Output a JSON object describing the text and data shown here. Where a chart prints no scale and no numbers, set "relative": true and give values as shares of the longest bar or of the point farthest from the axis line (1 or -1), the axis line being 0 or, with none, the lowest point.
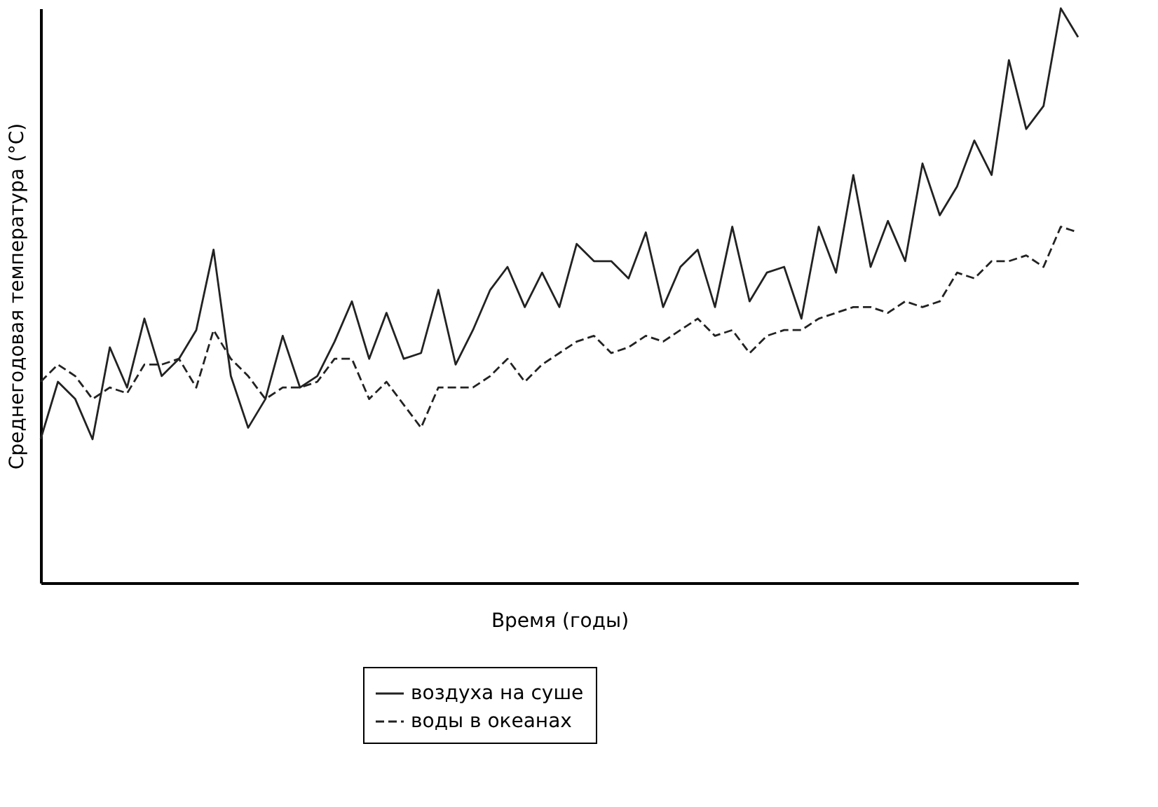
{
  "chart_data": {
    "type": "line",
    "relative": true,
    "xlabel": "Время (годы)",
    "ylabel": "Среднегодовая температура (°C)",
    "categories": [
      null,
      null,
      null,
      null,
      null,
      null,
      null,
      null,
      null,
      null,
      null,
      null,
      null,
      null,
      null,
      null,
      null,
      null,
      null,
      null,
      null,
      null,
      null,
      null,
      null,
      null,
      null,
      null,
      null,
      null,
      null,
      null,
      null,
      null,
      null,
      null,
      null,
      null,
      null,
      null,
      null,
      null,
      null,
      null,
      null,
      null,
      null,
      null,
      null,
      null,
      null,
      null,
      null,
      null,
      null,
      null,
      null,
      null,
      null,
      null,
      null
    ],
    "series": [
      {
        "name": "воздуха на суше",
        "color": "#222222",
        "line_style": "solid",
        "values": [
          0.25,
          0.35,
          0.32,
          0.25,
          0.41,
          0.34,
          0.46,
          0.36,
          0.39,
          0.44,
          0.58,
          0.36,
          0.27,
          0.32,
          0.43,
          0.34,
          0.36,
          0.42,
          0.49,
          0.39,
          0.47,
          0.39,
          0.4,
          0.51,
          0.38,
          0.44,
          0.51,
          0.55,
          0.48,
          0.54,
          0.48,
          0.59,
          0.56,
          0.56,
          0.53,
          0.61,
          0.48,
          0.55,
          0.58,
          0.48,
          0.62,
          0.49,
          0.54,
          0.55,
          0.46,
          0.62,
          0.54,
          0.71,
          0.55,
          0.63,
          0.56,
          0.73,
          0.64,
          0.69,
          0.77,
          0.71,
          0.91,
          0.79,
          0.83,
          1,
          0.95
        ]
      },
      {
        "name": "воды в океанах",
        "color": "#222222",
        "line_style": "dashed",
        "values": [
          0.35,
          0.38,
          0.36,
          0.32,
          0.34,
          0.33,
          0.38,
          0.38,
          0.39,
          0.34,
          0.44,
          0.39,
          0.36,
          0.32,
          0.34,
          0.34,
          0.35,
          0.39,
          0.39,
          0.32,
          0.35,
          0.31,
          0.27,
          0.34,
          0.34,
          0.34,
          0.36,
          0.39,
          0.35,
          0.38,
          0.4,
          0.42,
          0.43,
          0.4,
          0.41,
          0.43,
          0.42,
          0.44,
          0.46,
          0.43,
          0.44,
          0.4,
          0.43,
          0.44,
          0.44,
          0.46,
          0.47,
          0.48,
          0.48,
          0.47,
          0.49,
          0.48,
          0.49,
          0.54,
          0.53,
          0.56,
          0.56,
          0.57,
          0.55,
          0.62,
          0.61
        ]
      }
    ],
    "legend": "bottom",
    "grid": false,
    "marker": "none"
  }
}
